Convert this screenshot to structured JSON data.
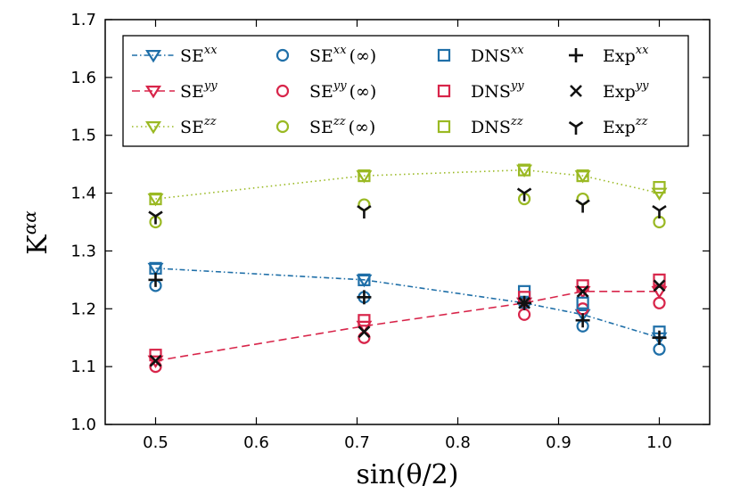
{
  "chart_data": {
    "type": "scatter",
    "xlabel": "sin(θ/2)",
    "ylabel": "K",
    "ylabel_sup": "αα",
    "xlim": [
      0.45,
      1.05
    ],
    "ylim": [
      1.0,
      1.7
    ],
    "xticks": [
      0.5,
      0.6,
      0.7,
      0.8,
      0.9,
      1.0
    ],
    "xtick_labels": [
      "0.5",
      "0.6",
      "0.7",
      "0.8",
      "0.9",
      "1.0"
    ],
    "yticks": [
      1.0,
      1.1,
      1.2,
      1.3,
      1.4,
      1.5,
      1.6,
      1.7
    ],
    "ytick_labels": [
      "1.0",
      "1.1",
      "1.2",
      "1.3",
      "1.4",
      "1.5",
      "1.6",
      "1.7"
    ],
    "grid": false,
    "legend_position": "top",
    "colors": {
      "xx": "#1f6fa8",
      "yy": "#d8254a",
      "zz": "#9ab923",
      "exp": "#111111"
    },
    "series": [
      {
        "name": "SE",
        "sup": "xx",
        "comp": "xx",
        "marker": "triangle-down",
        "line": "dashdot",
        "x": [
          0.5,
          0.707,
          0.866,
          0.924,
          1.0
        ],
        "values": [
          1.27,
          1.25,
          1.21,
          1.19,
          1.15
        ]
      },
      {
        "name": "SE",
        "sup": "yy",
        "comp": "yy",
        "marker": "triangle-down",
        "line": "dashed",
        "x": [
          0.5,
          0.707,
          0.866,
          0.924,
          1.0
        ],
        "values": [
          1.11,
          1.17,
          1.21,
          1.23,
          1.23
        ]
      },
      {
        "name": "SE",
        "sup": "zz",
        "comp": "zz",
        "marker": "triangle-down",
        "line": "dotted",
        "x": [
          0.5,
          0.707,
          0.866,
          0.924,
          1.0
        ],
        "values": [
          1.39,
          1.43,
          1.44,
          1.43,
          1.4
        ]
      },
      {
        "name": "SE",
        "sup": "xx",
        "suffix": "(∞)",
        "comp": "xx",
        "marker": "circle",
        "line": "none",
        "x": [
          0.5,
          0.707,
          0.866,
          0.924,
          1.0
        ],
        "values": [
          1.24,
          1.22,
          1.21,
          1.17,
          1.13
        ]
      },
      {
        "name": "SE",
        "sup": "yy",
        "suffix": "(∞)",
        "comp": "yy",
        "marker": "circle",
        "line": "none",
        "x": [
          0.5,
          0.707,
          0.866,
          0.924,
          1.0
        ],
        "values": [
          1.1,
          1.15,
          1.19,
          1.2,
          1.21
        ]
      },
      {
        "name": "SE",
        "sup": "zz",
        "suffix": "(∞)",
        "comp": "zz",
        "marker": "circle",
        "line": "none",
        "x": [
          0.5,
          0.707,
          0.866,
          0.924,
          1.0
        ],
        "values": [
          1.35,
          1.38,
          1.39,
          1.39,
          1.35
        ]
      },
      {
        "name": "DNS",
        "sup": "xx",
        "comp": "xx",
        "marker": "square",
        "line": "none",
        "x": [
          0.5,
          0.707,
          0.866,
          0.924,
          1.0
        ],
        "values": [
          1.27,
          1.25,
          1.23,
          1.21,
          1.16
        ]
      },
      {
        "name": "DNS",
        "sup": "yy",
        "comp": "yy",
        "marker": "square",
        "line": "none",
        "x": [
          0.5,
          0.707,
          0.866,
          0.924,
          1.0
        ],
        "values": [
          1.12,
          1.18,
          1.22,
          1.24,
          1.25
        ]
      },
      {
        "name": "DNS",
        "sup": "zz",
        "comp": "zz",
        "marker": "square",
        "line": "none",
        "x": [
          0.5,
          0.707,
          0.866,
          0.924,
          1.0
        ],
        "values": [
          1.39,
          1.43,
          1.44,
          1.43,
          1.41
        ]
      },
      {
        "name": "Exp",
        "sup": "xx",
        "comp": "exp",
        "marker": "plus",
        "line": "none",
        "x": [
          0.5,
          0.707,
          0.866,
          0.924,
          1.0
        ],
        "values": [
          1.25,
          1.22,
          1.21,
          1.18,
          1.15
        ]
      },
      {
        "name": "Exp",
        "sup": "yy",
        "comp": "exp",
        "marker": "x",
        "line": "none",
        "x": [
          0.5,
          0.707,
          0.866,
          0.924,
          1.0
        ],
        "values": [
          1.11,
          1.16,
          1.21,
          1.23,
          1.24
        ]
      },
      {
        "name": "Exp",
        "sup": "zz",
        "comp": "exp",
        "marker": "tri-down",
        "line": "none",
        "x": [
          0.5,
          0.707,
          0.866,
          0.924,
          1.0
        ],
        "values": [
          1.36,
          1.37,
          1.4,
          1.38,
          1.37
        ]
      }
    ]
  }
}
